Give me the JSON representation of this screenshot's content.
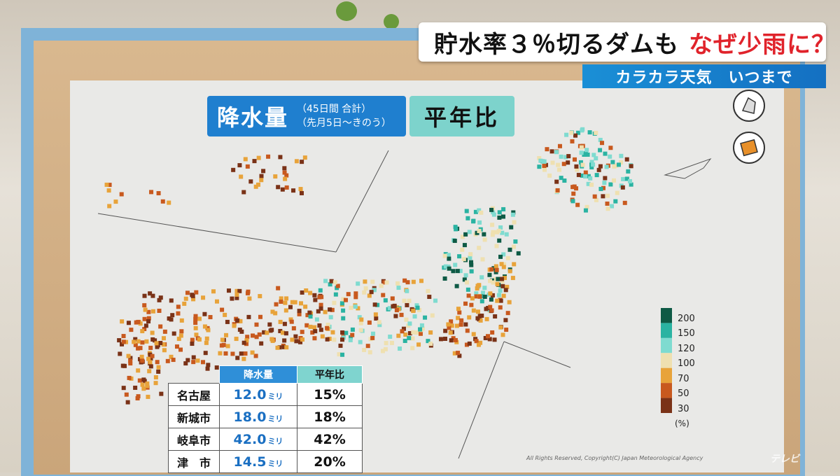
{
  "headline": {
    "main": "貯水率３％切るダムも",
    "accent": "なぜ少雨に？"
  },
  "subheadline": "カラカラ天気　いつまで",
  "map_title": {
    "main": "降水量",
    "sub_line1": "（45日間 合計）",
    "sub_line2": "（先月5日～きのう）",
    "ratio": "平年比"
  },
  "legend": {
    "labels": [
      "200",
      "150",
      "120",
      "100",
      "70",
      "50",
      "30"
    ],
    "unit": "(%)",
    "colors": [
      "#0e5a45",
      "#2ab3a2",
      "#7fdbd0",
      "#efe0b0",
      "#e8a33a",
      "#c8591e",
      "#7a3217"
    ]
  },
  "table": {
    "headers": {
      "amount": "降水量",
      "ratio": "平年比"
    },
    "rows": [
      {
        "name": "名古屋",
        "amount": "12.0",
        "unit": "ミリ",
        "ratio": "15%"
      },
      {
        "name": "新城市",
        "amount": "18.0",
        "unit": "ミリ",
        "ratio": "18%"
      },
      {
        "name": "岐阜市",
        "amount": "42.0",
        "unit": "ミリ",
        "ratio": "42%"
      },
      {
        "name": "津　市",
        "amount": "14.5",
        "unit": "ミリ",
        "ratio": "20%"
      }
    ]
  },
  "copyright": "All Rights Reserved, Copyright(C) Japan Meteorological Agency",
  "icons": [
    "map-3d-icon",
    "map-flat-icon"
  ]
}
